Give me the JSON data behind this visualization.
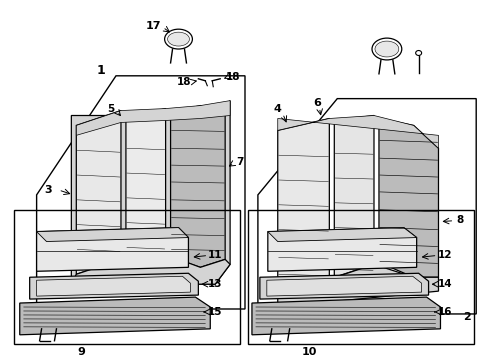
{
  "background_color": "#ffffff",
  "line_color": "#000000",
  "gray_light": "#e8e8e8",
  "gray_mid": "#d4d4d4",
  "gray_dark": "#bbbbbb",
  "figsize": [
    4.89,
    3.6
  ],
  "dpi": 100
}
